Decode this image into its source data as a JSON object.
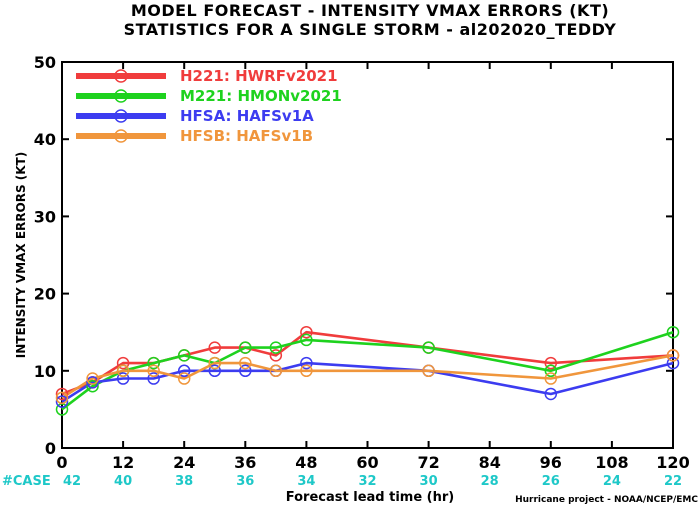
{
  "title_line1": "MODEL FORECAST - INTENSITY VMAX ERRORS (KT)",
  "title_line2": "STATISTICS FOR A SINGLE STORM - al202020_TEDDY",
  "credit": "Hurricane project - NOAA/NCEP/EMC",
  "case_label": "#CASE",
  "chart_data": {
    "type": "line",
    "xlabel": "Forecast lead time (hr)",
    "ylabel": "INTENSITY VMAX ERRORS (KT)",
    "xlim": [
      0,
      120
    ],
    "ylim": [
      0,
      50
    ],
    "xticks": [
      0,
      12,
      24,
      36,
      48,
      60,
      72,
      84,
      96,
      108,
      120
    ],
    "xtick_labels": [
      "0",
      "12",
      "24",
      "36",
      "48",
      "60",
      "72",
      "84",
      "96",
      "108",
      "120"
    ],
    "yticks": [
      0,
      10,
      20,
      30,
      40,
      50
    ],
    "ytick_labels": [
      "0",
      "10",
      "20",
      "30",
      "40",
      "50"
    ],
    "grid": false,
    "legend_position": "top-left",
    "cases": {
      "x": [
        0,
        12,
        24,
        36,
        48,
        60,
        72,
        84,
        96,
        108,
        120
      ],
      "labels": [
        "42",
        "40",
        "38",
        "36",
        "34",
        "32",
        "30",
        "28",
        "26",
        "24",
        "22"
      ]
    },
    "series": [
      {
        "name": "H221: HWRFv2021",
        "color": "#f03c3c",
        "x": [
          0,
          6,
          12,
          18,
          24,
          30,
          36,
          42,
          48,
          72,
          96,
          120
        ],
        "y": [
          7,
          8.5,
          11,
          11,
          12,
          13,
          13,
          12,
          15,
          13,
          11,
          12
        ]
      },
      {
        "name": "M221: HMONv2021",
        "color": "#1ed21e",
        "x": [
          0,
          6,
          12,
          18,
          24,
          30,
          36,
          42,
          48,
          72,
          96,
          120
        ],
        "y": [
          5,
          8,
          10,
          11,
          12,
          11,
          13,
          13,
          14,
          13,
          10,
          15
        ]
      },
      {
        "name": "HFSA: HAFSv1A",
        "color": "#3c3cf0",
        "x": [
          0,
          6,
          12,
          18,
          24,
          30,
          36,
          42,
          48,
          72,
          96,
          120
        ],
        "y": [
          6,
          8.5,
          9,
          9,
          10,
          10,
          10,
          10,
          11,
          10,
          7,
          11
        ]
      },
      {
        "name": "HFSB: HAFSv1B",
        "color": "#f0963c",
        "x": [
          0,
          6,
          12,
          18,
          24,
          30,
          36,
          42,
          48,
          72,
          96,
          120
        ],
        "y": [
          6.5,
          9,
          10,
          10,
          9,
          11,
          11,
          10,
          10,
          10,
          9,
          12
        ]
      }
    ]
  }
}
